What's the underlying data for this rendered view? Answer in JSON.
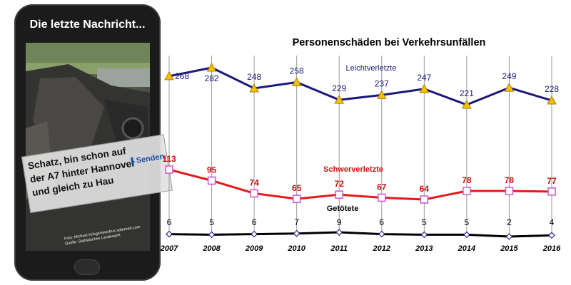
{
  "phone": {
    "title": "Die letzte Nachricht...",
    "message_lines": [
      "Schatz, bin schon auf",
      "der A7 hinter Hannover",
      "und gleich zu Hau"
    ],
    "send_label": "Senden",
    "photo_credit_lines": [
      "Foto: Michael Kriegerswerbus saferoad.com",
      "Quelle: Statistisches Landesamt"
    ]
  },
  "chart_data": {
    "type": "line",
    "title": "Personenschäden bei Verkehrsunfällen",
    "xlabel": "",
    "ylabel": "",
    "x": [
      2007,
      2008,
      2009,
      2010,
      2011,
      2012,
      2013,
      2014,
      2015,
      2016
    ],
    "series": [
      {
        "name": "Leichtverletzte",
        "values": [
          268,
          282,
          248,
          258,
          229,
          237,
          247,
          221,
          249,
          228
        ],
        "color": "#1a1a7a",
        "label_color": "#1a1a7a",
        "marker": "triangle",
        "marker_fill": "#f2c200"
      },
      {
        "name": "Schwerverletzte",
        "values": [
          113,
          95,
          74,
          65,
          72,
          67,
          64,
          78,
          78,
          77
        ],
        "color": "#e21a1a",
        "label_color": "#cc1010",
        "marker": "square",
        "marker_fill": "#ffffff",
        "marker_stroke": "#cc55cc"
      },
      {
        "name": "Getötete",
        "values": [
          6,
          5,
          6,
          7,
          9,
          6,
          5,
          5,
          2,
          4
        ],
        "color": "#000000",
        "label_color": "#000000",
        "marker": "diamond",
        "marker_fill": "#ffffff",
        "marker_stroke": "#2a2a8a"
      }
    ],
    "grid": "vertical",
    "legend": "inline-labels"
  }
}
